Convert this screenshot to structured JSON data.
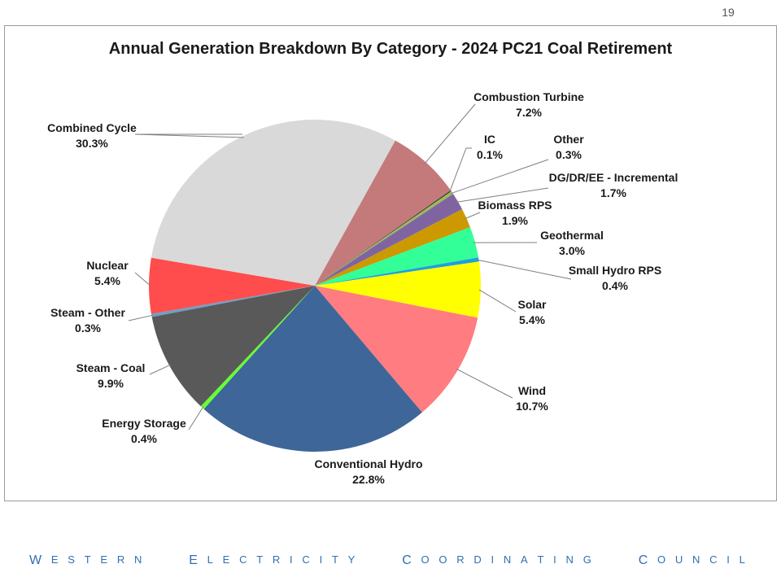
{
  "slide": {
    "page_number": "19",
    "footer": "WESTERN ELECTRICITY COORDINATING COUNCIL"
  },
  "chart_data": {
    "type": "pie",
    "title": "Annual Generation Breakdown By Category - 2024 PC21 Coal Retirement",
    "start_angle_deg": -61,
    "direction": "clockwise",
    "slices": [
      {
        "name": "Combustion Turbine",
        "value": 7.2,
        "label": "7.2%",
        "color": "#c47a7a"
      },
      {
        "name": "IC",
        "value": 0.1,
        "label": "0.1%",
        "color": "#2e2e2e"
      },
      {
        "name": "Other",
        "value": 0.3,
        "label": "0.3%",
        "color": "#9bbb59"
      },
      {
        "name": "DG/DR/EE - Incremental",
        "value": 1.7,
        "label": "1.7%",
        "color": "#8064a2"
      },
      {
        "name": "Biomass RPS",
        "value": 1.9,
        "label": "1.9%",
        "color": "#cc9900"
      },
      {
        "name": "Geothermal",
        "value": 3.0,
        "label": "3.0%",
        "color": "#33ff99"
      },
      {
        "name": "Small Hydro RPS",
        "value": 0.4,
        "label": "0.4%",
        "color": "#1e9fe0"
      },
      {
        "name": "Solar",
        "value": 5.4,
        "label": "5.4%",
        "color": "#ffff00"
      },
      {
        "name": "Wind",
        "value": 10.7,
        "label": "10.7%",
        "color": "#ff7c80"
      },
      {
        "name": "Conventional Hydro",
        "value": 22.8,
        "label": "22.8%",
        "color": "#3e6699"
      },
      {
        "name": "Energy Storage",
        "value": 0.4,
        "label": "0.4%",
        "color": "#66ff33"
      },
      {
        "name": "Steam - Coal",
        "value": 9.9,
        "label": "9.9%",
        "color": "#595959"
      },
      {
        "name": "Steam - Other",
        "value": 0.3,
        "label": "0.3%",
        "color": "#6f9fc4"
      },
      {
        "name": "Nuclear",
        "value": 5.4,
        "label": "5.4%",
        "color": "#ff4d4d"
      },
      {
        "name": "Combined Cycle",
        "value": 30.3,
        "label": "30.3%",
        "color": "#d9d9d9"
      }
    ]
  }
}
